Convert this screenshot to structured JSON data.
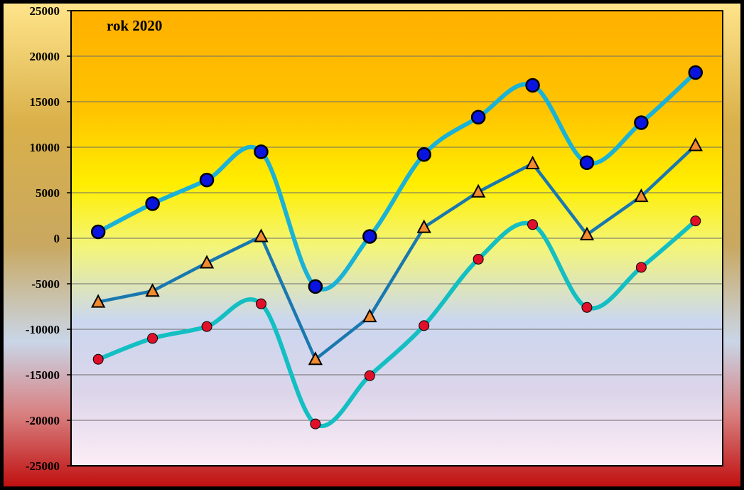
{
  "chart_data": {
    "type": "line",
    "title": "rok 2020",
    "xlabel": "",
    "ylabel": "",
    "ylim": [
      -25000,
      25000
    ],
    "yticks": [
      25000,
      20000,
      15000,
      10000,
      5000,
      0,
      -5000,
      -10000,
      -15000,
      -20000,
      -25000
    ],
    "grid": true,
    "legend": "none",
    "x": [
      1,
      2,
      3,
      4,
      5,
      6,
      7,
      8,
      9,
      10,
      11,
      12
    ],
    "series": [
      {
        "values": [
          700,
          3800,
          6400,
          9500,
          -5300,
          200,
          9200,
          13300,
          16800,
          8300,
          12700,
          18200
        ],
        "line_color": "#1ab2d6",
        "marker": "circle",
        "marker_color": "#0a14e0",
        "smooth": true
      },
      {
        "values": [
          -7000,
          -5800,
          -2700,
          200,
          -13300,
          -8600,
          1200,
          5100,
          8200,
          400,
          4600,
          10200
        ],
        "line_color": "#1a78b0",
        "marker": "triangle",
        "marker_color": "#f28a2e",
        "smooth": false
      },
      {
        "values": [
          -13300,
          -11000,
          -9700,
          -7200,
          -20400,
          -15100,
          -9600,
          -2300,
          1500,
          -7600,
          -3200,
          1900
        ],
        "line_color": "#13bfc2",
        "marker": "circle",
        "marker_color": "#e0102a",
        "smooth": true
      }
    ]
  }
}
